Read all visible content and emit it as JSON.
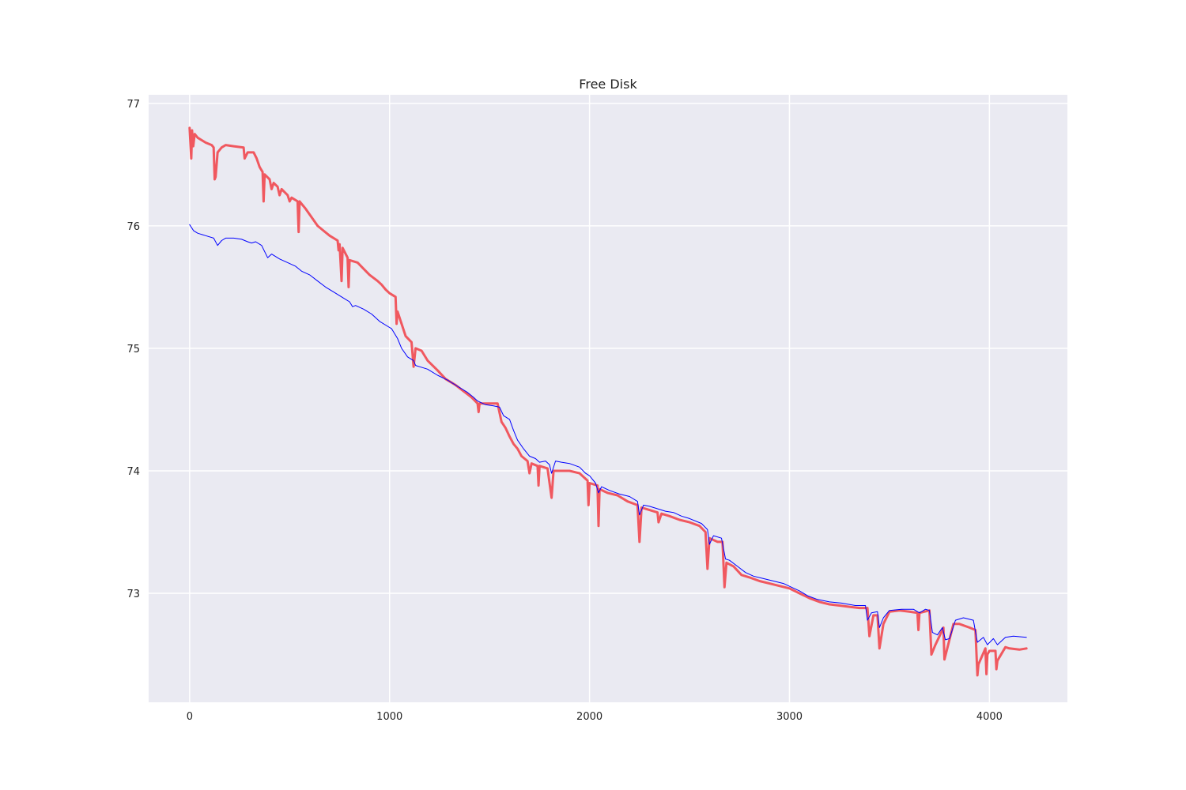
{
  "chart_data": {
    "type": "line",
    "title": "Free Disk",
    "xlabel": "",
    "ylabel": "",
    "xlim": [
      -205,
      4390
    ],
    "ylim": [
      72.11,
      77.07
    ],
    "x_ticks": [
      0,
      1000,
      2000,
      3000,
      4000
    ],
    "x_tick_labels": [
      "0",
      "1000",
      "2000",
      "3000",
      "4000"
    ],
    "y_ticks": [
      73,
      74,
      75,
      76,
      77
    ],
    "y_tick_labels": [
      "73",
      "74",
      "75",
      "76",
      "77"
    ],
    "grid": true,
    "legend": "none",
    "background_color": "#eaeaf2",
    "grid_color": "#ffffff",
    "series": [
      {
        "color": "#f0585f",
        "line_width": 3,
        "points": [
          [
            0,
            76.8
          ],
          [
            8,
            76.55
          ],
          [
            12,
            76.78
          ],
          [
            18,
            76.65
          ],
          [
            25,
            76.75
          ],
          [
            40,
            76.72
          ],
          [
            80,
            76.68
          ],
          [
            110,
            76.66
          ],
          [
            120,
            76.64
          ],
          [
            125,
            76.38
          ],
          [
            130,
            76.4
          ],
          [
            140,
            76.6
          ],
          [
            160,
            76.64
          ],
          [
            180,
            76.66
          ],
          [
            220,
            76.65
          ],
          [
            270,
            76.64
          ],
          [
            275,
            76.55
          ],
          [
            290,
            76.6
          ],
          [
            320,
            76.6
          ],
          [
            335,
            76.55
          ],
          [
            350,
            76.48
          ],
          [
            365,
            76.44
          ],
          [
            370,
            76.2
          ],
          [
            375,
            76.42
          ],
          [
            400,
            76.38
          ],
          [
            410,
            76.3
          ],
          [
            420,
            76.35
          ],
          [
            440,
            76.32
          ],
          [
            450,
            76.25
          ],
          [
            460,
            76.3
          ],
          [
            490,
            76.25
          ],
          [
            500,
            76.2
          ],
          [
            510,
            76.23
          ],
          [
            540,
            76.2
          ],
          [
            545,
            75.95
          ],
          [
            550,
            76.2
          ],
          [
            580,
            76.14
          ],
          [
            610,
            76.07
          ],
          [
            640,
            76.0
          ],
          [
            670,
            75.96
          ],
          [
            700,
            75.92
          ],
          [
            740,
            75.88
          ],
          [
            745,
            75.8
          ],
          [
            750,
            75.85
          ],
          [
            760,
            75.55
          ],
          [
            765,
            75.82
          ],
          [
            790,
            75.74
          ],
          [
            795,
            75.5
          ],
          [
            800,
            75.72
          ],
          [
            840,
            75.7
          ],
          [
            870,
            75.65
          ],
          [
            900,
            75.6
          ],
          [
            940,
            75.55
          ],
          [
            960,
            75.52
          ],
          [
            980,
            75.48
          ],
          [
            1000,
            75.45
          ],
          [
            1030,
            75.42
          ],
          [
            1035,
            75.2
          ],
          [
            1040,
            75.3
          ],
          [
            1060,
            75.2
          ],
          [
            1080,
            75.1
          ],
          [
            1110,
            75.05
          ],
          [
            1120,
            74.85
          ],
          [
            1130,
            75.0
          ],
          [
            1160,
            74.98
          ],
          [
            1190,
            74.9
          ],
          [
            1240,
            74.82
          ],
          [
            1280,
            74.75
          ],
          [
            1330,
            74.7
          ],
          [
            1370,
            74.65
          ],
          [
            1410,
            74.6
          ],
          [
            1440,
            74.55
          ],
          [
            1445,
            74.48
          ],
          [
            1450,
            74.55
          ],
          [
            1500,
            74.55
          ],
          [
            1540,
            74.55
          ],
          [
            1560,
            74.4
          ],
          [
            1580,
            74.35
          ],
          [
            1600,
            74.28
          ],
          [
            1620,
            74.22
          ],
          [
            1640,
            74.18
          ],
          [
            1660,
            74.12
          ],
          [
            1690,
            74.08
          ],
          [
            1700,
            73.98
          ],
          [
            1710,
            74.06
          ],
          [
            1740,
            74.04
          ],
          [
            1745,
            73.88
          ],
          [
            1750,
            74.04
          ],
          [
            1790,
            74.02
          ],
          [
            1810,
            73.78
          ],
          [
            1820,
            74.0
          ],
          [
            1860,
            74.0
          ],
          [
            1900,
            74.0
          ],
          [
            1950,
            73.98
          ],
          [
            1990,
            73.92
          ],
          [
            1995,
            73.72
          ],
          [
            2000,
            73.9
          ],
          [
            2040,
            73.88
          ],
          [
            2045,
            73.55
          ],
          [
            2050,
            73.85
          ],
          [
            2090,
            73.82
          ],
          [
            2140,
            73.8
          ],
          [
            2190,
            73.75
          ],
          [
            2240,
            73.72
          ],
          [
            2250,
            73.42
          ],
          [
            2260,
            73.7
          ],
          [
            2300,
            73.68
          ],
          [
            2340,
            73.66
          ],
          [
            2345,
            73.58
          ],
          [
            2360,
            73.65
          ],
          [
            2400,
            73.63
          ],
          [
            2450,
            73.6
          ],
          [
            2500,
            73.58
          ],
          [
            2550,
            73.55
          ],
          [
            2580,
            73.5
          ],
          [
            2590,
            73.2
          ],
          [
            2600,
            73.45
          ],
          [
            2640,
            73.42
          ],
          [
            2665,
            73.42
          ],
          [
            2675,
            73.05
          ],
          [
            2685,
            73.25
          ],
          [
            2720,
            73.22
          ],
          [
            2760,
            73.15
          ],
          [
            2800,
            73.13
          ],
          [
            2850,
            73.1
          ],
          [
            2900,
            73.08
          ],
          [
            2950,
            73.06
          ],
          [
            3000,
            73.04
          ],
          [
            3050,
            73.0
          ],
          [
            3100,
            72.96
          ],
          [
            3150,
            72.93
          ],
          [
            3200,
            72.91
          ],
          [
            3250,
            72.9
          ],
          [
            3300,
            72.89
          ],
          [
            3350,
            72.88
          ],
          [
            3390,
            72.88
          ],
          [
            3400,
            72.65
          ],
          [
            3420,
            72.82
          ],
          [
            3440,
            72.82
          ],
          [
            3450,
            72.55
          ],
          [
            3470,
            72.75
          ],
          [
            3500,
            72.85
          ],
          [
            3550,
            72.86
          ],
          [
            3600,
            72.85
          ],
          [
            3640,
            72.84
          ],
          [
            3645,
            72.7
          ],
          [
            3650,
            72.84
          ],
          [
            3700,
            72.86
          ],
          [
            3710,
            72.5
          ],
          [
            3730,
            72.58
          ],
          [
            3750,
            72.65
          ],
          [
            3770,
            72.72
          ],
          [
            3775,
            72.46
          ],
          [
            3800,
            72.62
          ],
          [
            3820,
            72.75
          ],
          [
            3850,
            72.75
          ],
          [
            3900,
            72.72
          ],
          [
            3930,
            72.7
          ],
          [
            3940,
            72.33
          ],
          [
            3945,
            72.42
          ],
          [
            3980,
            72.55
          ],
          [
            3985,
            72.34
          ],
          [
            3990,
            72.5
          ],
          [
            4000,
            72.53
          ],
          [
            4030,
            72.53
          ],
          [
            4035,
            72.38
          ],
          [
            4040,
            72.45
          ],
          [
            4080,
            72.56
          ],
          [
            4100,
            72.55
          ],
          [
            4150,
            72.54
          ],
          [
            4185,
            72.55
          ]
        ]
      },
      {
        "color": "#0000ff",
        "line_width": 1,
        "points": [
          [
            0,
            76.01
          ],
          [
            20,
            75.96
          ],
          [
            40,
            75.94
          ],
          [
            80,
            75.92
          ],
          [
            120,
            75.9
          ],
          [
            140,
            75.84
          ],
          [
            160,
            75.88
          ],
          [
            180,
            75.9
          ],
          [
            220,
            75.9
          ],
          [
            260,
            75.89
          ],
          [
            290,
            75.87
          ],
          [
            310,
            75.86
          ],
          [
            330,
            75.87
          ],
          [
            360,
            75.84
          ],
          [
            390,
            75.74
          ],
          [
            410,
            75.77
          ],
          [
            450,
            75.73
          ],
          [
            490,
            75.7
          ],
          [
            530,
            75.67
          ],
          [
            560,
            75.63
          ],
          [
            600,
            75.6
          ],
          [
            640,
            75.55
          ],
          [
            680,
            75.5
          ],
          [
            720,
            75.46
          ],
          [
            760,
            75.42
          ],
          [
            800,
            75.38
          ],
          [
            815,
            75.34
          ],
          [
            830,
            75.35
          ],
          [
            870,
            75.32
          ],
          [
            910,
            75.28
          ],
          [
            950,
            75.22
          ],
          [
            990,
            75.18
          ],
          [
            1010,
            75.16
          ],
          [
            1040,
            75.08
          ],
          [
            1060,
            75.0
          ],
          [
            1090,
            74.93
          ],
          [
            1120,
            74.9
          ],
          [
            1130,
            74.86
          ],
          [
            1150,
            74.85
          ],
          [
            1190,
            74.83
          ],
          [
            1240,
            74.78
          ],
          [
            1290,
            74.74
          ],
          [
            1340,
            74.69
          ],
          [
            1390,
            74.64
          ],
          [
            1420,
            74.6
          ],
          [
            1440,
            74.57
          ],
          [
            1480,
            74.54
          ],
          [
            1520,
            74.53
          ],
          [
            1550,
            74.52
          ],
          [
            1570,
            74.45
          ],
          [
            1600,
            74.42
          ],
          [
            1620,
            74.33
          ],
          [
            1640,
            74.25
          ],
          [
            1670,
            74.18
          ],
          [
            1700,
            74.12
          ],
          [
            1730,
            74.1
          ],
          [
            1750,
            74.07
          ],
          [
            1780,
            74.08
          ],
          [
            1800,
            74.05
          ],
          [
            1810,
            73.98
          ],
          [
            1830,
            74.08
          ],
          [
            1860,
            74.07
          ],
          [
            1900,
            74.06
          ],
          [
            1950,
            74.03
          ],
          [
            1980,
            73.98
          ],
          [
            2000,
            73.96
          ],
          [
            2030,
            73.9
          ],
          [
            2045,
            73.82
          ],
          [
            2060,
            73.87
          ],
          [
            2100,
            73.84
          ],
          [
            2150,
            73.81
          ],
          [
            2200,
            73.79
          ],
          [
            2240,
            73.75
          ],
          [
            2250,
            73.64
          ],
          [
            2270,
            73.72
          ],
          [
            2300,
            73.71
          ],
          [
            2340,
            73.69
          ],
          [
            2380,
            73.67
          ],
          [
            2420,
            73.66
          ],
          [
            2460,
            73.63
          ],
          [
            2500,
            73.61
          ],
          [
            2560,
            73.57
          ],
          [
            2590,
            73.52
          ],
          [
            2600,
            73.4
          ],
          [
            2620,
            73.47
          ],
          [
            2660,
            73.45
          ],
          [
            2680,
            73.28
          ],
          [
            2700,
            73.27
          ],
          [
            2740,
            73.22
          ],
          [
            2780,
            73.17
          ],
          [
            2820,
            73.14
          ],
          [
            2870,
            73.12
          ],
          [
            2920,
            73.1
          ],
          [
            2970,
            73.08
          ],
          [
            3010,
            73.05
          ],
          [
            3050,
            73.02
          ],
          [
            3090,
            72.98
          ],
          [
            3140,
            72.95
          ],
          [
            3200,
            72.93
          ],
          [
            3260,
            72.92
          ],
          [
            3330,
            72.9
          ],
          [
            3380,
            72.9
          ],
          [
            3390,
            72.78
          ],
          [
            3410,
            72.84
          ],
          [
            3440,
            72.85
          ],
          [
            3450,
            72.72
          ],
          [
            3470,
            72.8
          ],
          [
            3500,
            72.86
          ],
          [
            3560,
            72.87
          ],
          [
            3620,
            72.87
          ],
          [
            3650,
            72.84
          ],
          [
            3680,
            72.87
          ],
          [
            3700,
            72.86
          ],
          [
            3715,
            72.68
          ],
          [
            3740,
            72.66
          ],
          [
            3765,
            72.72
          ],
          [
            3780,
            72.62
          ],
          [
            3800,
            72.63
          ],
          [
            3830,
            72.78
          ],
          [
            3870,
            72.8
          ],
          [
            3920,
            72.78
          ],
          [
            3940,
            72.6
          ],
          [
            3970,
            72.64
          ],
          [
            3990,
            72.58
          ],
          [
            4020,
            72.63
          ],
          [
            4040,
            72.58
          ],
          [
            4080,
            72.64
          ],
          [
            4120,
            72.65
          ],
          [
            4185,
            72.64
          ]
        ]
      }
    ]
  }
}
